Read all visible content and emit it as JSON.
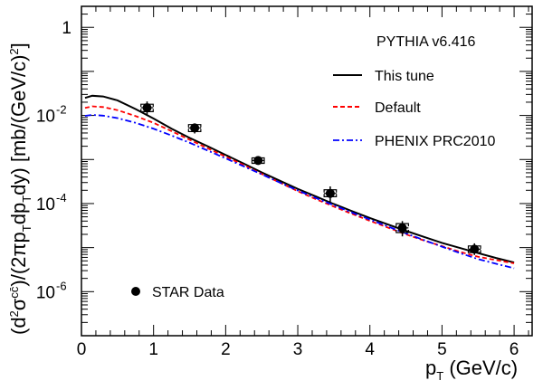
{
  "chart_data": {
    "type": "line",
    "annotation": "PYTHIA v6.416",
    "xlabel": "p_T (GeV/c)",
    "xlabel_main": "p",
    "xlabel_sub": "T",
    "xlabel_unit": "(GeV/c)",
    "ylabel": "(d²σ^{cc̄})/(2πp_T dp_T dy) [mb/(GeV/c)²]",
    "xlim": [
      0,
      6.25
    ],
    "ylim": [
      1e-07,
      3
    ],
    "yscale": "log",
    "grid": false,
    "x_ticks": [
      "0",
      "1",
      "2",
      "3",
      "4",
      "5",
      "6"
    ],
    "y_ticks": [
      {
        "value": 1,
        "label": "1"
      },
      {
        "value": 0.01,
        "label": "10",
        "exp": "-2"
      },
      {
        "value": 0.0001,
        "label": "10",
        "exp": "-4"
      },
      {
        "value": 1e-06,
        "label": "10",
        "exp": "-6"
      }
    ],
    "series": [
      {
        "name": "This tune",
        "style": "solid",
        "color": "#000000",
        "x": [
          0.05,
          0.15,
          0.3,
          0.5,
          0.75,
          1.0,
          1.25,
          1.5,
          1.75,
          2.0,
          2.25,
          2.5,
          2.75,
          3.0,
          3.25,
          3.5,
          3.75,
          4.0,
          4.25,
          4.5,
          4.75,
          5.0,
          5.25,
          5.5,
          5.75,
          6.0
        ],
        "y": [
          0.025,
          0.028,
          0.027,
          0.022,
          0.014,
          0.0085,
          0.005,
          0.0031,
          0.002,
          0.00127,
          0.00081,
          0.00051,
          0.00033,
          0.000215,
          0.000145,
          9.75e-05,
          6.75e-05,
          4.7e-05,
          3.35e-05,
          2.4e-05,
          1.75e-05,
          1.28e-05,
          9.8e-06,
          7.5e-06,
          5.8e-06,
          4.6e-06
        ]
      },
      {
        "name": "Default",
        "style": "dashed",
        "color": "#ff0000",
        "x": [
          0.05,
          0.15,
          0.3,
          0.5,
          0.75,
          1.0,
          1.25,
          1.5,
          1.75,
          2.0,
          2.25,
          2.5,
          2.75,
          3.0,
          3.25,
          3.5,
          3.75,
          4.0,
          4.25,
          4.5,
          4.75,
          5.0,
          5.25,
          5.5,
          5.75,
          6.0
        ],
        "y": [
          0.0148,
          0.0161,
          0.0155,
          0.0132,
          0.0097,
          0.0068,
          0.0044,
          0.0028,
          0.0018,
          0.00116,
          0.00075,
          0.00047,
          0.0003,
          0.000191,
          0.000126,
          8.55e-05,
          5.85e-05,
          4.05e-05,
          2.85e-05,
          2e-05,
          1.45e-05,
          1.08e-05,
          8e-06,
          6.2e-06,
          5.2e-06,
          4.4e-06
        ]
      },
      {
        "name": "PHENIX PRC2010",
        "style": "dashdot",
        "color": "#0000ff",
        "x": [
          0.05,
          0.15,
          0.3,
          0.5,
          0.75,
          1.0,
          1.25,
          1.5,
          1.75,
          2.0,
          2.25,
          2.5,
          2.75,
          3.0,
          3.25,
          3.5,
          3.75,
          4.0,
          4.25,
          4.5,
          4.75,
          5.0,
          5.25,
          5.5,
          5.75,
          6.0
        ],
        "y": [
          0.0098,
          0.0103,
          0.0099,
          0.0087,
          0.0068,
          0.005,
          0.0035,
          0.0024,
          0.0016,
          0.00106,
          0.0007,
          0.00046,
          0.0003,
          0.000198,
          0.000134,
          9.15e-05,
          6.25e-05,
          4.33e-05,
          3.02e-05,
          2.1e-05,
          1.48e-05,
          1.05e-05,
          7.5e-06,
          5.5e-06,
          4.3e-06,
          3.4e-06
        ]
      }
    ],
    "data_points": {
      "name": "STAR Data",
      "x": [
        0.91,
        1.57,
        2.45,
        3.45,
        4.45,
        5.45
      ],
      "y": [
        0.015,
        0.0052,
        0.00095,
        0.00017,
        2.8e-05,
        9.2e-06
      ],
      "y_err_low": [
        0.0098,
        0.0039,
        0.00078,
        0.000105,
        1.8e-05,
        6.8e-06
      ],
      "y_err_high": [
        0.0208,
        0.0066,
        0.00115,
        0.000245,
        4e-05,
        1.25e-05
      ],
      "sys_low": [
        0.0122,
        0.0043,
        0.00082,
        0.000143,
        2.2e-05,
        7.7e-06
      ],
      "sys_high": [
        0.018,
        0.0062,
        0.00109,
        0.000205,
        3.5e-05,
        1.09e-05
      ],
      "x_err": 0.085
    }
  }
}
